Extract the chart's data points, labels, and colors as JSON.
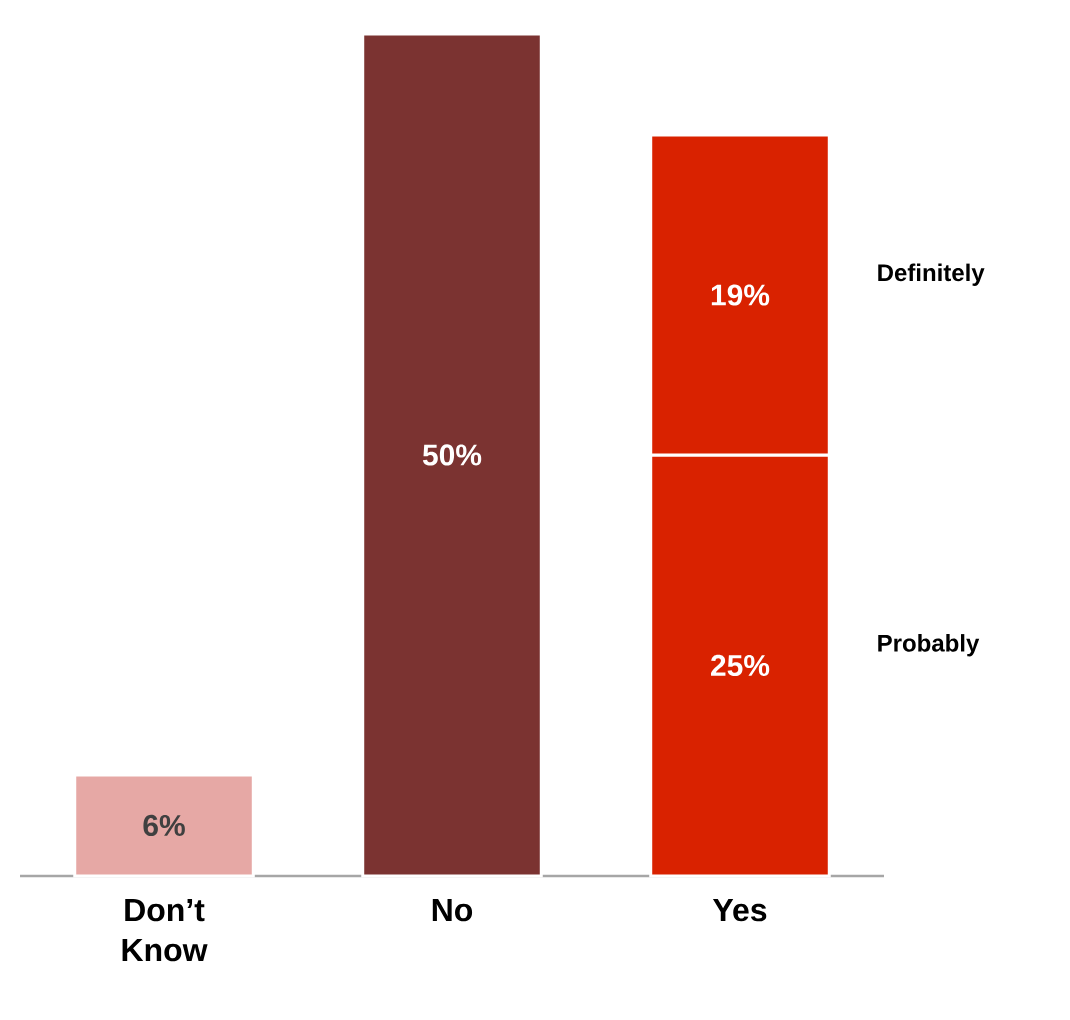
{
  "chart_data": {
    "type": "bar",
    "stacked": true,
    "categories": [
      "Don’t Know",
      "No",
      "Yes"
    ],
    "series": [
      {
        "colors": [
          "#e6a8a5",
          "#7b3331",
          null
        ],
        "values": [
          6,
          50,
          null
        ],
        "value_labels": [
          "6%",
          "50%",
          null
        ]
      },
      {
        "name": "Probably",
        "color": "#d92200",
        "values": [
          null,
          null,
          25
        ],
        "value_labels": [
          null,
          null,
          "25%"
        ]
      },
      {
        "name": "Definitely",
        "color": "#d92200",
        "values": [
          null,
          null,
          19
        ],
        "value_labels": [
          null,
          null,
          "19%"
        ]
      }
    ]
  }
}
